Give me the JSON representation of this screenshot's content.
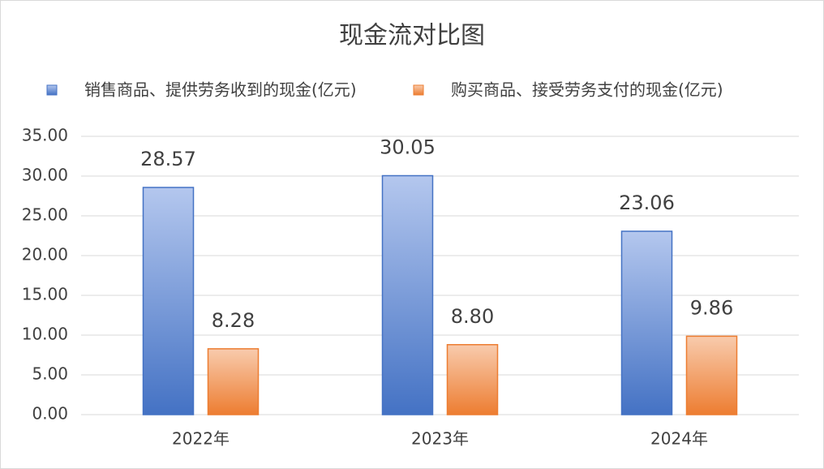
{
  "chart_data": {
    "type": "bar",
    "title": "现金流对比图",
    "categories": [
      "2022年",
      "2023年",
      "2024年"
    ],
    "series": [
      {
        "name": "销售商品、提供劳务收到的现金(亿元)",
        "color": "#4472c4",
        "values": [
          28.57,
          30.05,
          23.06
        ],
        "value_labels": [
          "28.57",
          "30.05",
          "23.06"
        ]
      },
      {
        "name": "购买商品、接受劳务支付的现金(亿元)",
        "color": "#ed7d31",
        "values": [
          8.28,
          8.8,
          9.86
        ],
        "value_labels": [
          "8.28",
          "8.80",
          "9.86"
        ]
      }
    ],
    "ylim": [
      0,
      35
    ],
    "yticks": [
      {
        "value": 0,
        "label": "0.00"
      },
      {
        "value": 5,
        "label": "5.00"
      },
      {
        "value": 10,
        "label": "10.00"
      },
      {
        "value": 15,
        "label": "15.00"
      },
      {
        "value": 20,
        "label": "20.00"
      },
      {
        "value": 25,
        "label": "25.00"
      },
      {
        "value": 30,
        "label": "30.00"
      },
      {
        "value": 35,
        "label": "35.00"
      }
    ],
    "grid": true,
    "legend": "top"
  }
}
